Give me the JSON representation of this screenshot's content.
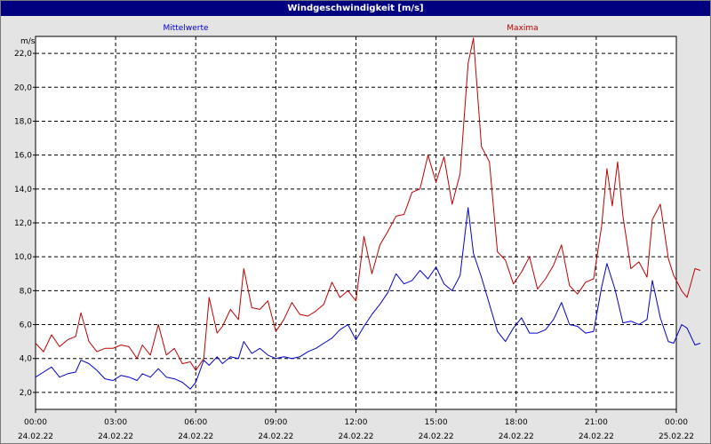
{
  "window": {
    "title": "Windgeschwindigkeit [m/s]"
  },
  "chart_data": {
    "type": "line",
    "title": "Windgeschwindigkeit [m/s]",
    "ylabel": "m/s",
    "xlim": [
      0,
      24
    ],
    "ylim": [
      1.0,
      23.0
    ],
    "grid": true,
    "legend": "top",
    "y_ticks": [
      "2,0",
      "4,0",
      "6,0",
      "8,0",
      "10,0",
      "12,0",
      "14,0",
      "16,0",
      "18,0",
      "20,0",
      "22,0"
    ],
    "x_ticks": [
      {
        "time": "00:00",
        "date": "24.02.22"
      },
      {
        "time": "03:00",
        "date": "24.02.22"
      },
      {
        "time": "06:00",
        "date": "24.02.22"
      },
      {
        "time": "09:00",
        "date": "24.02.22"
      },
      {
        "time": "12:00",
        "date": "24.02.22"
      },
      {
        "time": "15:00",
        "date": "24.02.22"
      },
      {
        "time": "18:00",
        "date": "24.02.22"
      },
      {
        "time": "21:00",
        "date": "24.02.22"
      },
      {
        "time": "00:00",
        "date": "25.02.22"
      }
    ],
    "x_unit": "hours",
    "series": [
      {
        "name": "Mittelwerte",
        "color": "#0000cc",
        "points": [
          [
            0,
            2.9
          ],
          [
            0.3,
            3.2
          ],
          [
            0.6,
            3.5
          ],
          [
            0.9,
            2.9
          ],
          [
            1.2,
            3.1
          ],
          [
            1.5,
            3.2
          ],
          [
            1.7,
            3.9
          ],
          [
            2.0,
            3.7
          ],
          [
            2.3,
            3.3
          ],
          [
            2.6,
            2.8
          ],
          [
            2.9,
            2.7
          ],
          [
            3.2,
            3.0
          ],
          [
            3.5,
            2.9
          ],
          [
            3.8,
            2.7
          ],
          [
            4.0,
            3.1
          ],
          [
            4.3,
            2.9
          ],
          [
            4.6,
            3.4
          ],
          [
            4.9,
            2.9
          ],
          [
            5.2,
            2.8
          ],
          [
            5.5,
            2.6
          ],
          [
            5.8,
            2.2
          ],
          [
            6.0,
            2.6
          ],
          [
            6.3,
            3.9
          ],
          [
            6.5,
            3.6
          ],
          [
            6.8,
            4.1
          ],
          [
            7.0,
            3.7
          ],
          [
            7.3,
            4.1
          ],
          [
            7.6,
            4.0
          ],
          [
            7.8,
            5.0
          ],
          [
            8.1,
            4.3
          ],
          [
            8.4,
            4.6
          ],
          [
            8.7,
            4.2
          ],
          [
            9.0,
            4.0
          ],
          [
            9.3,
            4.1
          ],
          [
            9.6,
            4.0
          ],
          [
            9.9,
            4.1
          ],
          [
            10.2,
            4.4
          ],
          [
            10.5,
            4.6
          ],
          [
            10.8,
            4.9
          ],
          [
            11.1,
            5.2
          ],
          [
            11.4,
            5.7
          ],
          [
            11.7,
            6.0
          ],
          [
            12.0,
            5.1
          ],
          [
            12.3,
            5.9
          ],
          [
            12.6,
            6.6
          ],
          [
            12.9,
            7.2
          ],
          [
            13.2,
            7.9
          ],
          [
            13.5,
            9.0
          ],
          [
            13.8,
            8.4
          ],
          [
            14.1,
            8.6
          ],
          [
            14.4,
            9.2
          ],
          [
            14.7,
            8.7
          ],
          [
            15.0,
            9.4
          ],
          [
            15.3,
            8.4
          ],
          [
            15.6,
            8.0
          ],
          [
            15.9,
            8.9
          ],
          [
            16.2,
            12.9
          ],
          [
            16.4,
            10.2
          ],
          [
            16.7,
            8.8
          ],
          [
            17.0,
            7.2
          ],
          [
            17.3,
            5.6
          ],
          [
            17.6,
            5.0
          ],
          [
            17.9,
            5.8
          ],
          [
            18.2,
            6.4
          ],
          [
            18.5,
            5.5
          ],
          [
            18.8,
            5.5
          ],
          [
            19.1,
            5.7
          ],
          [
            19.4,
            6.3
          ],
          [
            19.7,
            7.3
          ],
          [
            20.0,
            6.0
          ],
          [
            20.3,
            5.9
          ],
          [
            20.6,
            5.5
          ],
          [
            20.9,
            5.6
          ],
          [
            21.2,
            8.2
          ],
          [
            21.4,
            9.6
          ],
          [
            21.7,
            8.1
          ],
          [
            22.0,
            6.1
          ],
          [
            22.3,
            6.2
          ],
          [
            22.6,
            6.0
          ],
          [
            22.9,
            6.3
          ],
          [
            23.1,
            8.6
          ],
          [
            23.4,
            6.4
          ],
          [
            23.7,
            5.0
          ],
          [
            23.9,
            4.9
          ],
          [
            24.2,
            6.0
          ],
          [
            24.4,
            5.8
          ],
          [
            24.7,
            4.8
          ],
          [
            24.9,
            4.9
          ]
        ]
      },
      {
        "name": "Maxima",
        "color": "#c00000",
        "points": [
          [
            0,
            4.9
          ],
          [
            0.3,
            4.4
          ],
          [
            0.6,
            5.4
          ],
          [
            0.9,
            4.7
          ],
          [
            1.2,
            5.1
          ],
          [
            1.5,
            5.3
          ],
          [
            1.7,
            6.7
          ],
          [
            2.0,
            5.0
          ],
          [
            2.3,
            4.4
          ],
          [
            2.6,
            4.6
          ],
          [
            2.9,
            4.6
          ],
          [
            3.2,
            4.8
          ],
          [
            3.5,
            4.7
          ],
          [
            3.8,
            4.0
          ],
          [
            4.0,
            4.8
          ],
          [
            4.3,
            4.2
          ],
          [
            4.6,
            6.0
          ],
          [
            4.9,
            4.2
          ],
          [
            5.2,
            4.6
          ],
          [
            5.5,
            3.7
          ],
          [
            5.8,
            3.8
          ],
          [
            6.0,
            3.3
          ],
          [
            6.3,
            4.0
          ],
          [
            6.5,
            7.6
          ],
          [
            6.8,
            5.5
          ],
          [
            7.0,
            5.9
          ],
          [
            7.3,
            6.9
          ],
          [
            7.6,
            6.3
          ],
          [
            7.8,
            9.3
          ],
          [
            8.1,
            7.0
          ],
          [
            8.4,
            6.9
          ],
          [
            8.7,
            7.4
          ],
          [
            9.0,
            5.6
          ],
          [
            9.3,
            6.3
          ],
          [
            9.6,
            7.3
          ],
          [
            9.9,
            6.6
          ],
          [
            10.2,
            6.5
          ],
          [
            10.5,
            6.8
          ],
          [
            10.8,
            7.2
          ],
          [
            11.1,
            8.5
          ],
          [
            11.4,
            7.6
          ],
          [
            11.7,
            8.0
          ],
          [
            12.0,
            7.4
          ],
          [
            12.3,
            11.2
          ],
          [
            12.6,
            9.0
          ],
          [
            12.9,
            10.7
          ],
          [
            13.2,
            11.5
          ],
          [
            13.5,
            12.4
          ],
          [
            13.8,
            12.5
          ],
          [
            14.1,
            13.8
          ],
          [
            14.4,
            14.0
          ],
          [
            14.7,
            16.0
          ],
          [
            15.0,
            14.4
          ],
          [
            15.3,
            15.9
          ],
          [
            15.6,
            13.1
          ],
          [
            15.9,
            14.9
          ],
          [
            16.2,
            21.4
          ],
          [
            16.4,
            22.9
          ],
          [
            16.7,
            16.5
          ],
          [
            17.0,
            15.6
          ],
          [
            17.3,
            10.3
          ],
          [
            17.6,
            9.8
          ],
          [
            17.9,
            8.4
          ],
          [
            18.2,
            9.1
          ],
          [
            18.5,
            10.0
          ],
          [
            18.8,
            8.1
          ],
          [
            19.1,
            8.7
          ],
          [
            19.4,
            9.5
          ],
          [
            19.7,
            10.7
          ],
          [
            20.0,
            8.3
          ],
          [
            20.3,
            7.8
          ],
          [
            20.6,
            8.5
          ],
          [
            20.9,
            8.7
          ],
          [
            21.2,
            11.8
          ],
          [
            21.4,
            15.2
          ],
          [
            21.6,
            13.0
          ],
          [
            21.8,
            15.6
          ],
          [
            22.0,
            12.4
          ],
          [
            22.3,
            9.3
          ],
          [
            22.6,
            9.7
          ],
          [
            22.9,
            8.8
          ],
          [
            23.1,
            12.2
          ],
          [
            23.4,
            13.1
          ],
          [
            23.7,
            9.9
          ],
          [
            23.9,
            8.9
          ],
          [
            24.2,
            8.0
          ],
          [
            24.4,
            7.6
          ],
          [
            24.7,
            9.3
          ],
          [
            24.9,
            9.2
          ]
        ]
      }
    ]
  }
}
